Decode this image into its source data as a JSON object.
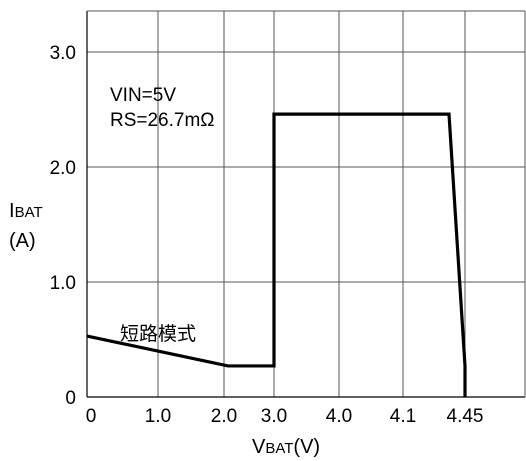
{
  "chart_data": {
    "type": "line",
    "ylabel": {
      "main": "I",
      "sub": "BAT",
      "unit": "(A)"
    },
    "xlabel": {
      "main": "V",
      "sub": "BAT",
      "unit": "(V)"
    },
    "x_ticks": [
      "0",
      "1.0",
      "2.0",
      "3.0",
      "4.0",
      "4.1",
      "4.45"
    ],
    "y_ticks": [
      "0",
      "1.0",
      "2.0",
      "3.0"
    ],
    "ylim": [
      0,
      3.3
    ],
    "grid": true,
    "annotations": {
      "vin": "VIN=5V",
      "rs": "RS=26.7mΩ",
      "short_mode": "短路模式"
    },
    "series": [
      {
        "points": [
          {
            "x": "0",
            "y": 0.53
          },
          {
            "x": "2.0",
            "y": 0.27
          },
          {
            "x": "3.0",
            "y": 0.27
          },
          {
            "x": "3.0",
            "y": 2.46
          },
          {
            "x": "4.1",
            "y": 2.46
          },
          {
            "x": "4.45",
            "y": 0.27
          },
          {
            "x": "4.45",
            "y": 0
          }
        ]
      }
    ]
  }
}
